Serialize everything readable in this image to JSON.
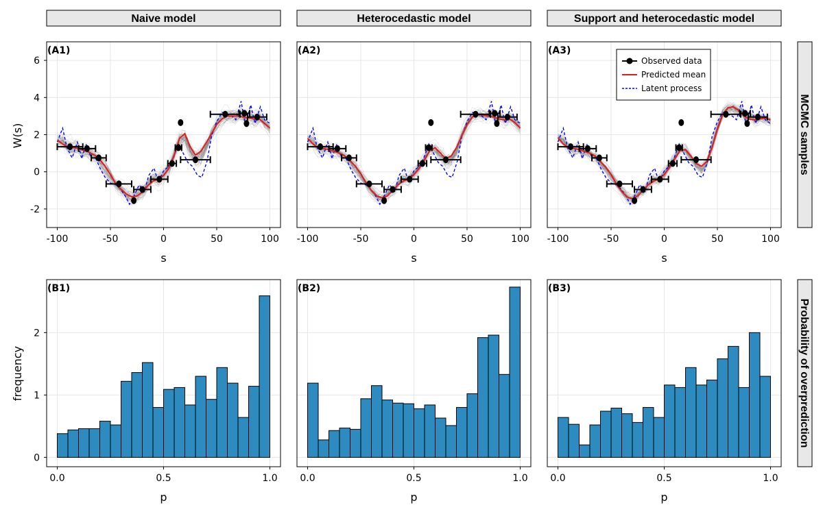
{
  "colors": {
    "observed": "#000000",
    "mean": "#e41a1c",
    "latent": "#0000ff",
    "samples": "#777777",
    "bar": "#2e8bc0",
    "strip": "#e8e8e8",
    "grid": "#e6e6e6"
  },
  "chart_data": {
    "type": "faceted",
    "columns": [
      "Naive model",
      "Heterocedastic model",
      "Support and heterocedastic model"
    ],
    "rows": [
      "MCMC samples",
      "Probability of overprediction"
    ],
    "top": {
      "type": "line",
      "xlabel": "s",
      "ylabel": "W(s)",
      "xlim": [
        -110,
        110
      ],
      "ylim": [
        -3,
        7
      ],
      "xticks": [
        -100,
        -50,
        0,
        50,
        100
      ],
      "xtick_labels": [
        "-100",
        "-50",
        "0",
        "50",
        "100"
      ],
      "yticks": [
        -2,
        0,
        2,
        4,
        6
      ],
      "ytick_labels": [
        "-2",
        "0",
        "2",
        "4",
        "6"
      ],
      "panel_tags": [
        "(A1)",
        "(A2)",
        "(A3)"
      ],
      "legend": {
        "placement": "top-right of panel A3",
        "entries": [
          "Observed data",
          "Predicted mean",
          "Latent process"
        ]
      },
      "observed": [
        {
          "x": -88,
          "y": 1.35,
          "xerr": 12
        },
        {
          "x": -72,
          "y": 1.25,
          "xerr": 8
        },
        {
          "x": -61,
          "y": 0.75,
          "xerr": 7
        },
        {
          "x": -42,
          "y": -0.65,
          "xerr": 12
        },
        {
          "x": -28,
          "y": -1.55,
          "xerr": 0
        },
        {
          "x": -20,
          "y": -0.95,
          "xerr": 8
        },
        {
          "x": -4,
          "y": -0.4,
          "xerr": 8
        },
        {
          "x": 8,
          "y": 0.45,
          "xerr": 4
        },
        {
          "x": 14,
          "y": 1.3,
          "xerr": 3
        },
        {
          "x": 16,
          "y": 2.65,
          "xerr": 0
        },
        {
          "x": 30,
          "y": 0.65,
          "xerr": 14
        },
        {
          "x": 58,
          "y": 3.1,
          "xerr": 14
        },
        {
          "x": 76,
          "y": 3.15,
          "xerr": 5
        },
        {
          "x": 78,
          "y": 2.6,
          "xerr": 0
        },
        {
          "x": 88,
          "y": 2.95,
          "xerr": 9
        }
      ],
      "latent_x": [
        -100,
        -95,
        -91,
        -86,
        -81,
        -77,
        -73,
        -68,
        -64,
        -59,
        -55,
        -50,
        -45,
        -41,
        -36,
        -32,
        -27,
        -23,
        -18,
        -14,
        -9,
        -5,
        0,
        5,
        9,
        14,
        18,
        23,
        27,
        32,
        36,
        41,
        45,
        50,
        55,
        59,
        64,
        68,
        73,
        77,
        82,
        86,
        91,
        95,
        100
      ],
      "latent_y": [
        1.6,
        2.35,
        1.3,
        0.75,
        1.6,
        0.7,
        1.5,
        0.75,
        0.75,
        0.1,
        -0.3,
        -0.6,
        -0.7,
        -0.9,
        -1.3,
        -1.75,
        -1.2,
        -0.7,
        -1.05,
        -0.2,
        0.2,
        -0.55,
        0.05,
        0.3,
        0.7,
        1.5,
        1.05,
        0.5,
        0.3,
        -0.2,
        -0.3,
        0.6,
        1.9,
        2.7,
        3.2,
        3.1,
        3.0,
        2.8,
        3.8,
        2.5,
        3.6,
        2.6,
        3.5,
        2.8,
        2.6
      ],
      "mean_x": [
        -100,
        -95,
        -90,
        -85,
        -80,
        -75,
        -70,
        -65,
        -60,
        -55,
        -50,
        -45,
        -40,
        -35,
        -30,
        -25,
        -20,
        -15,
        -10,
        -5,
        0,
        5,
        10,
        15,
        20,
        25,
        30,
        35,
        40,
        45,
        50,
        55,
        60,
        65,
        70,
        75,
        80,
        85,
        90,
        95,
        100
      ],
      "mean_y": [
        [
          1.7,
          1.5,
          1.35,
          1.3,
          1.25,
          1.15,
          1.05,
          0.9,
          0.65,
          0.3,
          -0.15,
          -0.65,
          -0.95,
          -1.2,
          -1.35,
          -1.3,
          -1.1,
          -0.75,
          -0.5,
          -0.4,
          -0.2,
          0.2,
          0.9,
          1.8,
          2.05,
          1.35,
          0.9,
          1.1,
          1.55,
          2.05,
          2.55,
          2.85,
          3.0,
          3.0,
          3.0,
          2.95,
          2.9,
          2.85,
          2.85,
          2.6,
          2.35
        ],
        [
          1.8,
          1.5,
          1.3,
          1.25,
          1.2,
          1.1,
          1.0,
          0.85,
          0.6,
          0.3,
          -0.1,
          -0.6,
          -1.0,
          -1.3,
          -1.4,
          -1.3,
          -1.0,
          -0.7,
          -0.5,
          -0.4,
          -0.15,
          0.2,
          0.65,
          1.15,
          1.3,
          1.0,
          0.7,
          0.85,
          1.3,
          1.95,
          2.55,
          2.95,
          3.1,
          3.05,
          3.0,
          2.95,
          2.85,
          2.8,
          2.85,
          2.65,
          2.35
        ],
        [
          1.85,
          1.5,
          1.3,
          1.25,
          1.2,
          1.1,
          1.0,
          0.85,
          0.55,
          0.25,
          -0.15,
          -0.65,
          -1.05,
          -1.35,
          -1.45,
          -1.3,
          -1.0,
          -0.7,
          -0.5,
          -0.4,
          -0.15,
          0.25,
          0.7,
          1.15,
          1.2,
          0.85,
          0.45,
          0.3,
          0.55,
          1.3,
          2.3,
          3.1,
          3.45,
          3.5,
          3.3,
          3.0,
          2.85,
          2.8,
          2.85,
          2.9,
          2.8
        ]
      ]
    },
    "bottom": {
      "type": "bar",
      "xlabel": "p",
      "ylabel": "frequency",
      "xlim": [
        -0.05,
        1.05
      ],
      "ylim": [
        -0.15,
        2.85
      ],
      "xticks": [
        0.0,
        0.5,
        1.0
      ],
      "xtick_labels": [
        "0.0",
        "0.5",
        "1.0"
      ],
      "yticks": [
        0,
        1,
        2
      ],
      "ytick_labels": [
        "0",
        "1",
        "2"
      ],
      "panel_tags": [
        "(B1)",
        "(B2)",
        "(B3)"
      ],
      "bin_edges": [
        0.0,
        0.05,
        0.1,
        0.15,
        0.2,
        0.25,
        0.3,
        0.35,
        0.4,
        0.45,
        0.5,
        0.55,
        0.6,
        0.65,
        0.7,
        0.75,
        0.8,
        0.85,
        0.9,
        0.95,
        1.0
      ],
      "series": [
        {
          "name": "Naive model",
          "values": [
            0.38,
            0.44,
            0.46,
            0.46,
            0.58,
            0.52,
            1.22,
            1.36,
            1.52,
            0.8,
            1.09,
            1.12,
            0.84,
            1.3,
            0.93,
            1.44,
            1.19,
            0.64,
            1.14,
            2.59
          ]
        },
        {
          "name": "Heterocedastic model",
          "values": [
            1.19,
            0.28,
            0.43,
            0.47,
            0.45,
            0.94,
            1.15,
            0.92,
            0.87,
            0.86,
            0.78,
            0.84,
            0.63,
            0.51,
            0.8,
            1.02,
            1.92,
            1.96,
            1.33,
            2.73
          ]
        },
        {
          "name": "Support and heterocedastic model",
          "values": [
            0.64,
            0.53,
            0.2,
            0.52,
            0.74,
            0.79,
            0.7,
            0.56,
            0.8,
            0.64,
            1.16,
            1.12,
            1.44,
            1.16,
            1.24,
            1.58,
            1.78,
            1.12,
            2.0,
            1.3
          ]
        }
      ]
    }
  }
}
